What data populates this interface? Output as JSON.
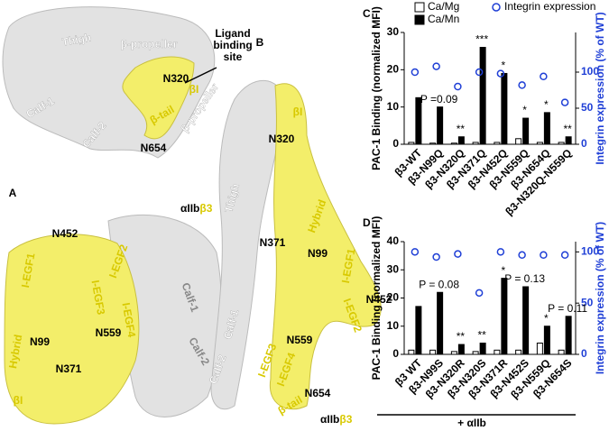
{
  "top_view": {
    "labels": [
      "Thigh",
      "β-propeller",
      "N320",
      "βI",
      "β-tail",
      "N654",
      "Calf-1",
      "Calf-2"
    ],
    "site": [
      "Ligand",
      "binding",
      "site"
    ]
  },
  "panel_a": {
    "letter": "A",
    "complex": [
      "αIIb",
      "β3"
    ],
    "labels": [
      "N452",
      "I-EGF1",
      "I-EGF2",
      "Calf-1",
      "Hybrid",
      "N99",
      "N559",
      "I-EGF3",
      "I-EGF4",
      "N371",
      "βI",
      "Calf-2"
    ]
  },
  "panel_b": {
    "letter": "B",
    "complex": [
      "αIIb",
      "β3"
    ],
    "labels": [
      "β-propeller",
      "βI",
      "N320",
      "Thigh",
      "Hybrid",
      "N371",
      "N99",
      "I-EGF1",
      "I-EGF2",
      "N452",
      "Calf-1",
      "Calf-2",
      "I-EGF3",
      "I-EGF4",
      "N559",
      "β-tail",
      "N654"
    ]
  },
  "chart_data": [
    {
      "type": "bar",
      "panel": "C",
      "ylabel": "PAC-1 Binding (normalized MFI)",
      "y2label": "Integrin expression (% of WT)",
      "legend": true,
      "categories": [
        "β3-WT",
        "β3-N99Q",
        "β3-N320Q",
        "β3-N371Q",
        "β3-N452Q",
        "β3-N559Q",
        "β3-N654Q",
        "β3-N320Q-N559Q"
      ],
      "series": [
        {
          "name": "Ca/Mg",
          "color": "#ffffff",
          "values": [
            0.5,
            0.3,
            0.3,
            0.5,
            0.5,
            1.5,
            0.5,
            0.5
          ]
        },
        {
          "name": "Ca/Mn",
          "color": "#000000",
          "values": [
            12.5,
            10,
            2,
            26,
            19,
            7,
            8.5,
            2
          ]
        },
        {
          "name": "Integrin expression",
          "color": "#1f3fd6",
          "type": "scatter",
          "axis": "y2",
          "values": [
            100,
            108,
            80,
            100,
            98,
            82,
            94,
            58
          ]
        }
      ],
      "annotations": [
        null,
        "P =0.09",
        "**",
        "***",
        "*",
        "*",
        "*",
        "**"
      ],
      "ylim": [
        0,
        30
      ],
      "yticks": [
        0,
        10,
        20,
        30
      ],
      "y2lim": [
        0,
        155
      ],
      "y2ticks": [
        0,
        50,
        100
      ]
    },
    {
      "type": "bar",
      "panel": "D",
      "ylabel": "PAC-1 Binding (normalized MFI)",
      "y2label": "Integrin expression (% of WT)",
      "legend": false,
      "xlabel": "+ αIIb",
      "categories": [
        "β3 WT",
        "β3-N99S",
        "β3-N320R",
        "β3-N320S",
        "β3-N371R",
        "β3-N452S",
        "β3-N559Q",
        "β3-N654S"
      ],
      "series": [
        {
          "color": "#ffffff",
          "values": [
            1.5,
            1.5,
            1,
            1,
            1.5,
            1.5,
            4,
            1.5
          ]
        },
        {
          "color": "#000000",
          "values": [
            17,
            22,
            3.5,
            4,
            27,
            24,
            10,
            13.5
          ]
        },
        {
          "color": "#1f3fd6",
          "type": "scatter",
          "axis": "y2",
          "values": [
            100,
            95,
            98,
            60,
            100,
            97,
            97,
            97
          ]
        }
      ],
      "annotations": [
        null,
        "P = 0.08",
        "**",
        "**",
        "*",
        "P = 0.13",
        "*",
        "P = 0.11"
      ],
      "ylim": [
        0,
        40
      ],
      "yticks": [
        0,
        10,
        20,
        30,
        40
      ],
      "y2lim": [
        0,
        110
      ],
      "y2ticks": [
        0,
        50,
        100
      ]
    }
  ]
}
